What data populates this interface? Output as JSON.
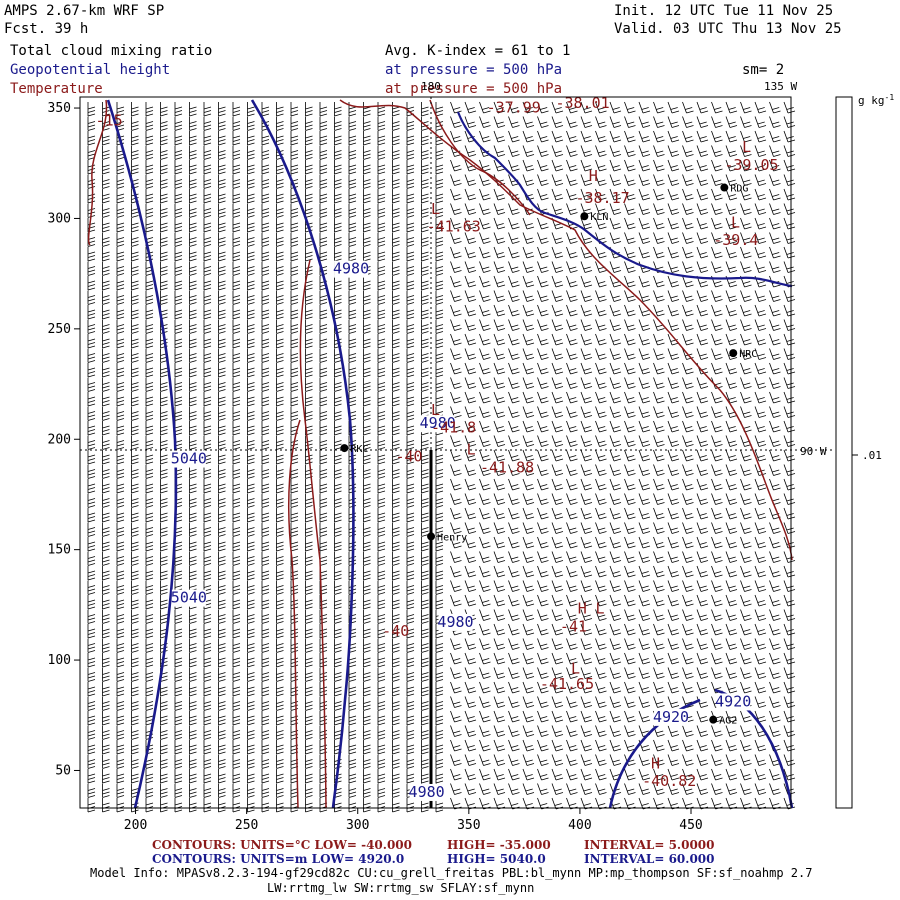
{
  "header": {
    "model": "AMPS 2.67-km WRF SP",
    "forecast": "Fcst.   39 h",
    "init": "Init. 12 UTC Tue 11 Nov 25",
    "valid": "Valid. 03 UTC Thu 13 Nov 25",
    "field1": "Total cloud mixing ratio",
    "field2": "Geopotential height",
    "field3": "Temperature",
    "avg": "Avg. K-index =  61 to   1",
    "pressure1": "at pressure =  500 hPa",
    "pressure2": "at pressure =  500 hPa",
    "sm": "sm= 2"
  },
  "colors": {
    "height_contour": "#1a1a8c",
    "temperature_contour": "#8b1a1a",
    "coastline": "#1a1a8c",
    "barbs": "#000000"
  },
  "chart_data": {
    "type": "contour-map",
    "xticks": [
      200,
      250,
      300,
      350,
      400,
      450
    ],
    "yticks": [
      50,
      100,
      150,
      200,
      250,
      300,
      350
    ],
    "xlim": [
      175,
      495
    ],
    "ylim": [
      33,
      355
    ],
    "grid_labels": {
      "lon_top": "180",
      "lon_corner": "135 W",
      "lat_right": "90 W"
    },
    "colorbar": {
      "unit": "g kg",
      "unit_sup": "-1",
      "label": ".01"
    },
    "height_labels": [
      {
        "text": "4980",
        "x": 297,
        "y": 275
      },
      {
        "text": "4980",
        "x": 336,
        "y": 205
      },
      {
        "text": "4980",
        "x": 344,
        "y": 115
      },
      {
        "text": "4980",
        "x": 331,
        "y": 38
      },
      {
        "text": "5040",
        "x": 224,
        "y": 189
      },
      {
        "text": "5040",
        "x": 224,
        "y": 126
      },
      {
        "text": "4920",
        "x": 441,
        "y": 72
      },
      {
        "text": "4920",
        "x": 469,
        "y": 79
      }
    ],
    "temperature_labels": [
      {
        "text": "-15",
        "x": 182,
        "y": 342
      },
      {
        "text": "-40",
        "x": 317,
        "y": 190
      },
      {
        "text": "-40",
        "x": 311,
        "y": 111
      },
      {
        "text": "-37.99",
        "x": 358,
        "y": 348
      },
      {
        "text": "-38.01",
        "x": 389,
        "y": 350
      },
      {
        "text": "-38.17",
        "x": 398,
        "y": 307
      },
      {
        "text": "-39.05",
        "x": 465,
        "y": 322
      },
      {
        "text": "-39.4",
        "x": 460,
        "y": 288
      },
      {
        "text": "-41.63",
        "x": 331,
        "y": 294
      },
      {
        "text": "-41.8",
        "x": 333,
        "y": 203
      },
      {
        "text": "-41.88",
        "x": 355,
        "y": 185
      },
      {
        "text": "-41",
        "x": 391,
        "y": 113
      },
      {
        "text": "-41.65",
        "x": 382,
        "y": 87
      },
      {
        "text": "-40.82",
        "x": 428,
        "y": 43
      }
    ],
    "extrema": [
      {
        "text": "L",
        "x": 333,
        "y": 302
      },
      {
        "text": "H",
        "x": 404,
        "y": 317
      },
      {
        "text": "L",
        "x": 473,
        "y": 330
      },
      {
        "text": "L",
        "x": 468,
        "y": 296
      },
      {
        "text": "L",
        "x": 333,
        "y": 211
      },
      {
        "text": "L",
        "x": 349,
        "y": 193
      },
      {
        "text": "H",
        "x": 399,
        "y": 121
      },
      {
        "text": "L",
        "x": 407,
        "y": 121
      },
      {
        "text": "L",
        "x": 396,
        "y": 94
      },
      {
        "text": "H",
        "x": 432,
        "y": 51
      }
    ],
    "stations": [
      {
        "name": "RDG",
        "x": 465,
        "y": 314
      },
      {
        "name": "KLN",
        "x": 402,
        "y": 301
      },
      {
        "name": "HRC",
        "x": 469,
        "y": 239
      },
      {
        "name": "RKC",
        "x": 294,
        "y": 196
      },
      {
        "name": "Henry",
        "x": 333,
        "y": 156
      },
      {
        "name": "AG2",
        "x": 460,
        "y": 73
      }
    ]
  },
  "footer": {
    "line1_prefix": "CONTOURS:  UNITS=°C  LOW=  -40.000",
    "line1_high": "HIGH=  -35.000",
    "line1_interval": "INTERVAL=   5.0000",
    "line2_prefix": "CONTOURS:  UNITS=m   LOW=   4920.0",
    "line2_high": "HIGH=  5040.0",
    "line2_interval": "INTERVAL=   60.000",
    "model_info": "Model Info: MPASv8.2.3-194-gf29cd82c CU:cu_grell_freitas PBL:bl_mynn MP:mp_thompson SF:sf_noahmp 2.7",
    "model_info2": "LW:rrtmg_lw SW:rrtmg_sw SFLAY:sf_mynn"
  }
}
